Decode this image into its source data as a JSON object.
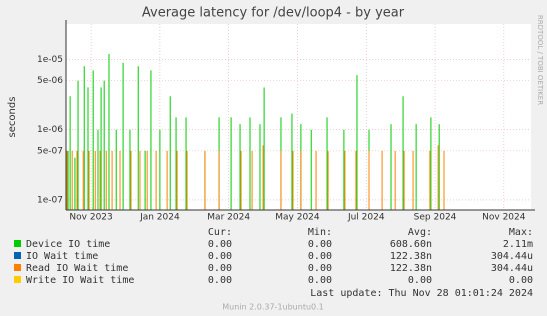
{
  "chart_data": {
    "type": "bar",
    "title": "Average latency for /dev/loop4 - by year",
    "y_label": "seconds",
    "side_note": "RRDTOOL / TOBI OETIKER",
    "log_y": true,
    "grid": true,
    "xlim": [
      -0.73,
      12.79
    ],
    "xticks": [
      {
        "value": 0,
        "label": "Nov 2023"
      },
      {
        "value": 2,
        "label": "Jan 2024"
      },
      {
        "value": 4,
        "label": "Mar 2024"
      },
      {
        "value": 6,
        "label": "May 2024"
      },
      {
        "value": 8,
        "label": "Jul 2024"
      },
      {
        "value": 10,
        "label": "Sep 2024"
      },
      {
        "value": 12,
        "label": "Nov 2024"
      }
    ],
    "ylim": [
      7.2e-08,
      3.2e-05
    ],
    "yticks": [
      {
        "value": 1e-07,
        "label": "1e-07"
      },
      {
        "value": 5e-07,
        "label": "5e-07"
      },
      {
        "value": 1e-06,
        "label": "1e-06"
      },
      {
        "value": 5e-06,
        "label": "5e-06"
      },
      {
        "value": 1e-05,
        "label": "1e-05"
      }
    ],
    "series": [
      {
        "name": "Device IO time",
        "color": "#00cc00",
        "x": [
          -0.67,
          -0.61,
          -0.47,
          -0.38,
          -0.2,
          -0.09,
          0.06,
          0.2,
          0.29,
          0.38,
          0.52,
          0.73,
          0.93,
          1.13,
          1.37,
          1.57,
          1.74,
          2.0,
          2.3,
          2.47,
          2.76,
          3.31,
          3.72,
          4.07,
          4.33,
          4.62,
          4.91,
          5.03,
          5.52,
          5.84,
          6.1,
          6.4,
          6.86,
          7.35,
          7.73,
          8.08,
          8.72,
          9.07,
          9.45,
          9.88,
          10.12,
          10.26
        ],
        "values": [
          5e-07,
          3e-06,
          4e-07,
          5e-06,
          8e-06,
          4e-06,
          7e-06,
          1e-06,
          4e-06,
          5e-06,
          1.2e-05,
          1e-06,
          9e-06,
          1e-06,
          8e-06,
          5e-07,
          7e-06,
          1e-06,
          3e-06,
          1.5e-06,
          1.5e-06,
          5e-07,
          1.5e-06,
          1.5e-06,
          1.2e-06,
          1.5e-06,
          1.2e-06,
          4e-06,
          1.5e-06,
          1.7e-06,
          1.2e-06,
          1e-06,
          1.5e-06,
          1e-06,
          6e-06,
          1e-06,
          1.2e-06,
          3e-06,
          1.2e-06,
          1.5e-06,
          1.2e-06,
          5e-07
        ]
      },
      {
        "name": "IO Wait time",
        "color": "#0066b3",
        "x": [],
        "values": []
      },
      {
        "name": "Read IO Wait time",
        "color": "#ff8000",
        "x": [
          -0.7,
          -0.55,
          -0.41,
          -0.23,
          -0.06,
          0.12,
          0.26,
          0.44,
          0.61,
          0.84,
          1.16,
          1.42,
          1.63,
          1.89,
          2.21,
          2.5,
          2.79,
          3.31,
          3.72,
          4.36,
          4.68,
          5.0,
          5.52,
          5.87,
          6.1,
          6.54,
          6.89,
          7.38,
          7.7,
          8.08,
          8.46,
          8.84,
          9.1,
          9.36,
          9.85,
          10.09,
          10.26
        ],
        "values": [
          5e-07,
          5e-07,
          5e-07,
          5e-07,
          5e-07,
          5e-07,
          5e-07,
          5e-07,
          5e-07,
          5e-07,
          5e-07,
          5e-07,
          5e-07,
          5e-07,
          5e-07,
          5e-07,
          5e-07,
          5e-07,
          5e-07,
          5e-07,
          5e-07,
          6e-07,
          5e-07,
          5e-07,
          5e-07,
          5e-07,
          5e-07,
          5e-07,
          5e-07,
          5e-07,
          5e-07,
          5e-07,
          5e-07,
          5e-07,
          5e-07,
          6e-07,
          5e-07
        ]
      },
      {
        "name": "Write IO Wait time",
        "color": "#ffcc00",
        "x": [],
        "values": []
      }
    ],
    "summary": {
      "headers": [
        "Cur:",
        "Min:",
        "Avg:",
        "Max:"
      ],
      "rows": [
        [
          "0.00",
          "0.00",
          "608.60n",
          "2.11m"
        ],
        [
          "0.00",
          "0.00",
          "122.38n",
          "304.44u"
        ],
        [
          "0.00",
          "0.00",
          "122.38n",
          "304.44u"
        ],
        [
          "0.00",
          "0.00",
          "0.00",
          "0.00"
        ]
      ]
    },
    "last_update": "Last update: Thu Nov 28 01:01:24 2024",
    "footer": "Munin 2.0.37-1ubuntu0.1"
  }
}
